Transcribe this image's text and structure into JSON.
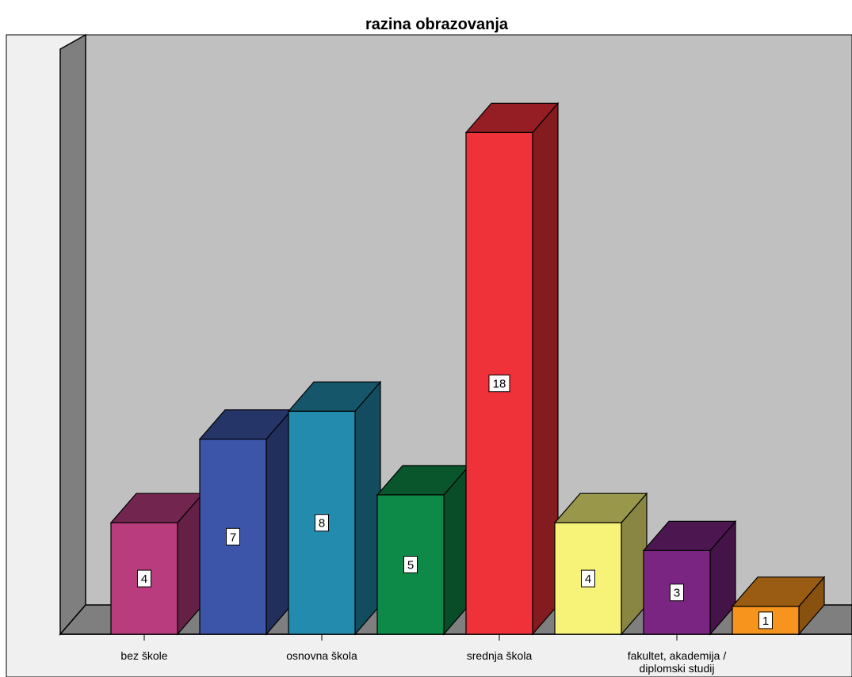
{
  "chart_data": {
    "type": "bar",
    "title": "razina obrazovanja",
    "xlabel": "",
    "ylabel": "",
    "ylim": [
      0,
      18
    ],
    "grid": false,
    "legend": "none",
    "three_d": true,
    "bars": [
      {
        "value": 4,
        "label": "4",
        "color": "#b83c7e"
      },
      {
        "value": 7,
        "label": "7",
        "color": "#3c55a8"
      },
      {
        "value": 8,
        "label": "8",
        "color": "#238bad"
      },
      {
        "value": 5,
        "label": "5",
        "color": "#0e8a48"
      },
      {
        "value": 18,
        "label": "18",
        "color": "#ef3139"
      },
      {
        "value": 4,
        "label": "4",
        "color": "#f7f378"
      },
      {
        "value": 3,
        "label": "3",
        "color": "#7b2582"
      },
      {
        "value": 1,
        "label": "1",
        "color": "#f7941d"
      }
    ],
    "ticks": [
      {
        "bar_index": 0,
        "text": "bez škole"
      },
      {
        "bar_index": 2,
        "text": "osnovna škola"
      },
      {
        "bar_index": 4,
        "text": "srednja škola"
      },
      {
        "bar_index": 6,
        "text": "fakultet, akademija /\ndiplomski studij"
      }
    ],
    "colors": {
      "plot_wall": "#c0c0c0",
      "side_wall": "#7f7f7f",
      "floor": "#7f7f7f",
      "outer_panel": "#f0f0f0"
    }
  }
}
